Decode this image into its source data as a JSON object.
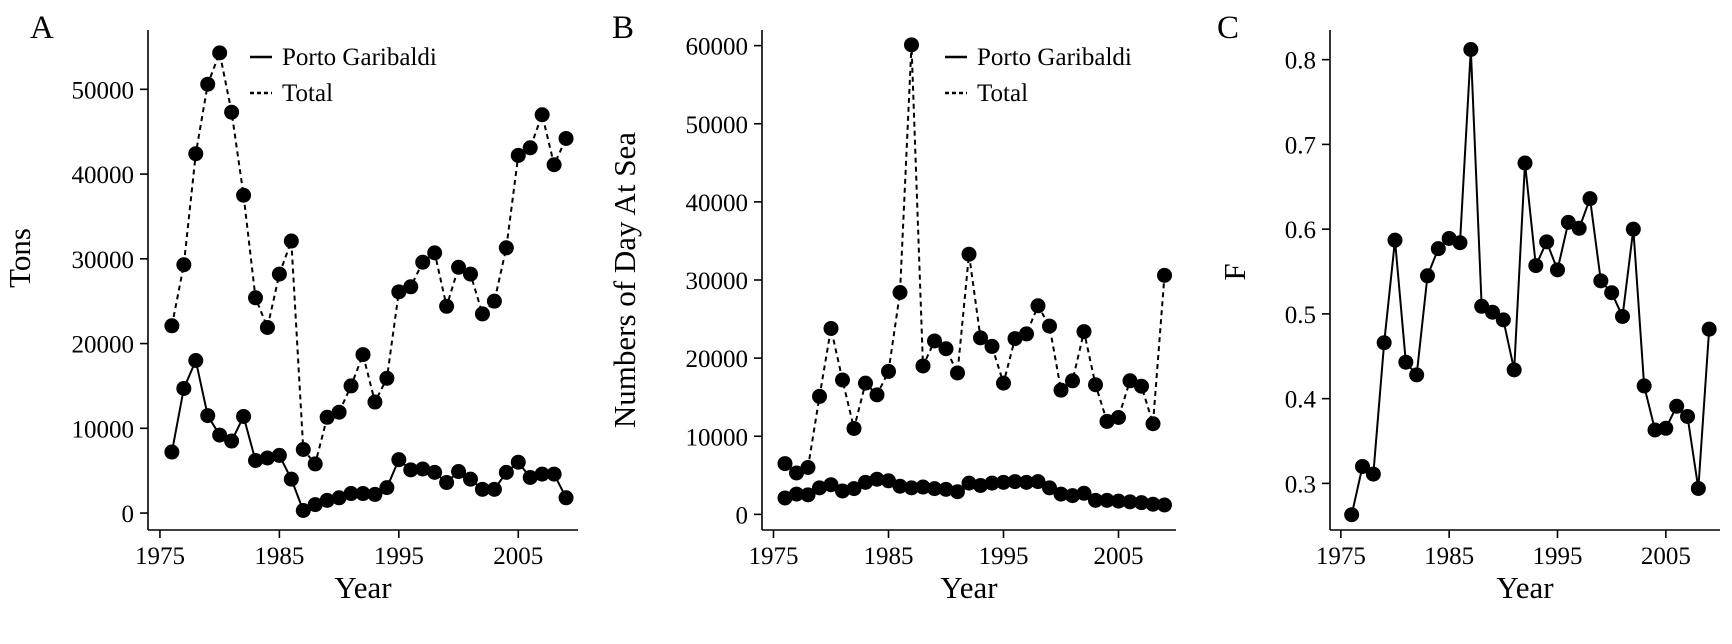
{
  "figure": {
    "panels": [
      {
        "letter": "A"
      },
      {
        "letter": "B"
      },
      {
        "letter": "C"
      }
    ]
  },
  "chart_data": [
    {
      "type": "line",
      "panel": "A",
      "xlabel": "Year",
      "ylabel": "Tons",
      "xlim": [
        1974,
        2010
      ],
      "ylim": [
        -2000,
        57000
      ],
      "xticks": [
        1975,
        1985,
        1995,
        2005
      ],
      "yticks": [
        0,
        10000,
        20000,
        30000,
        40000,
        50000
      ],
      "legend": "top-right",
      "x": [
        1976,
        1977,
        1978,
        1979,
        1980,
        1981,
        1982,
        1983,
        1984,
        1985,
        1986,
        1987,
        1988,
        1989,
        1990,
        1991,
        1992,
        1993,
        1994,
        1995,
        1996,
        1997,
        1998,
        1999,
        2000,
        2001,
        2002,
        2003,
        2004,
        2005,
        2006,
        2007,
        2008,
        2009
      ],
      "series": [
        {
          "name": "Porto Garibaldi",
          "line": "solid",
          "values": [
            7200,
            14700,
            18000,
            11500,
            9200,
            8500,
            11400,
            6200,
            6500,
            6800,
            4000,
            300,
            1000,
            1500,
            1800,
            2300,
            2300,
            2200,
            3000,
            6300,
            5100,
            5200,
            4800,
            3600,
            4900,
            4000,
            2800,
            2800,
            4800,
            6000,
            4200,
            4600,
            4600,
            1800
          ]
        },
        {
          "name": "Total",
          "line": "dashed",
          "values": [
            22100,
            29300,
            42400,
            50600,
            54300,
            47300,
            37500,
            25400,
            21900,
            28200,
            32100,
            7500,
            5800,
            11300,
            11900,
            15000,
            18700,
            13100,
            15900,
            26100,
            26700,
            29600,
            30700,
            24400,
            29000,
            28200,
            23500,
            25000,
            31300,
            42200,
            43100,
            47000,
            41100,
            44200
          ]
        }
      ]
    },
    {
      "type": "line",
      "panel": "B",
      "xlabel": "Year",
      "ylabel": "Numbers of Day At Sea",
      "xlim": [
        1974,
        2010
      ],
      "ylim": [
        -2000,
        62000
      ],
      "xticks": [
        1975,
        1985,
        1995,
        2005
      ],
      "yticks": [
        0,
        10000,
        20000,
        30000,
        40000,
        50000,
        60000
      ],
      "legend": "top-right",
      "x": [
        1976,
        1977,
        1978,
        1979,
        1980,
        1981,
        1982,
        1983,
        1984,
        1985,
        1986,
        1987,
        1988,
        1989,
        1990,
        1991,
        1992,
        1993,
        1994,
        1995,
        1996,
        1997,
        1998,
        1999,
        2000,
        2001,
        2002,
        2003,
        2004,
        2005,
        2006,
        2007,
        2008,
        2009
      ],
      "series": [
        {
          "name": "Porto Garibaldi",
          "line": "solid",
          "values": [
            2100,
            2600,
            2500,
            3400,
            3800,
            3000,
            3300,
            4100,
            4500,
            4300,
            3600,
            3400,
            3500,
            3300,
            3200,
            2900,
            4000,
            3700,
            4000,
            4100,
            4200,
            4100,
            4200,
            3400,
            2600,
            2400,
            2700,
            1800,
            1800,
            1700,
            1600,
            1500,
            1300,
            1200
          ]
        },
        {
          "name": "Total",
          "line": "dashed",
          "values": [
            6500,
            5300,
            6000,
            15100,
            23800,
            17200,
            11000,
            16800,
            15300,
            18300,
            28400,
            60100,
            19000,
            22200,
            21200,
            18100,
            33300,
            22600,
            21500,
            16800,
            22500,
            23100,
            26700,
            24100,
            15900,
            17100,
            23400,
            16600,
            11900,
            12400,
            17100,
            16400,
            11600,
            30600
          ]
        }
      ]
    },
    {
      "type": "line",
      "panel": "C",
      "xlabel": "Year",
      "ylabel": "F",
      "xlim": [
        1974,
        2010
      ],
      "ylim": [
        0.245,
        0.835
      ],
      "xticks": [
        1975,
        1985,
        1995,
        2005
      ],
      "yticks": [
        0.3,
        0.4,
        0.5,
        0.6,
        0.7,
        0.8
      ],
      "x": [
        1976,
        1977,
        1978,
        1979,
        1980,
        1981,
        1982,
        1983,
        1984,
        1985,
        1986,
        1987,
        1988,
        1989,
        1990,
        1991,
        1992,
        1993,
        1994,
        1995,
        1996,
        1997,
        1998,
        1999,
        2000,
        2001,
        2002,
        2003,
        2004,
        2005,
        2006,
        2007,
        2008,
        2009
      ],
      "series": [
        {
          "line": "solid",
          "values": [
            0.263,
            0.32,
            0.311,
            0.466,
            0.587,
            0.443,
            0.428,
            0.545,
            0.577,
            0.589,
            0.584,
            0.812,
            0.509,
            0.502,
            0.493,
            0.434,
            0.678,
            0.557,
            0.585,
            0.552,
            0.608,
            0.601,
            0.636,
            0.539,
            0.525,
            0.497,
            0.6,
            0.415,
            0.363,
            0.365,
            0.391,
            0.379,
            0.294,
            0.482
          ]
        }
      ]
    }
  ]
}
